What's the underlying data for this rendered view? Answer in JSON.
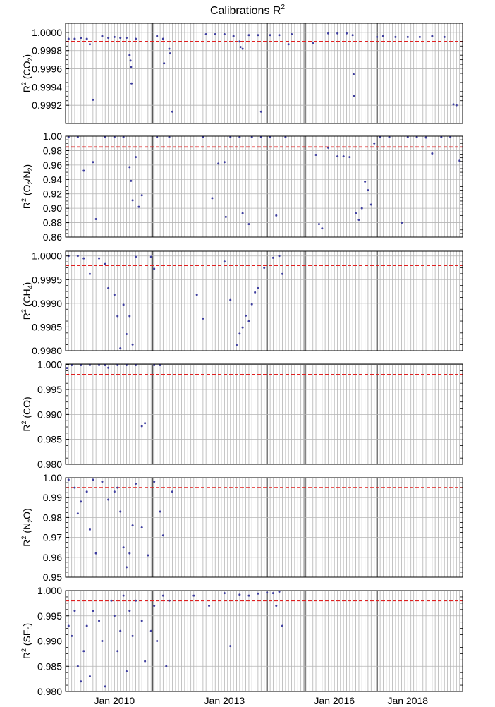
{
  "figure": {
    "title": "Calibrations R",
    "title_sup": "2"
  },
  "colors": {
    "points": "#3d3d9e",
    "threshold": "#e02020",
    "grid_minor": "#b4b4b4",
    "grid_major": "#5a5a5a",
    "frame": "#000000"
  },
  "x_axis": {
    "type": "date",
    "min": "2008-09-01",
    "max": "2019-07-01",
    "tick_labels": [
      {
        "date": "2010-01-01",
        "label": "Jan 2010"
      },
      {
        "date": "2013-01-01",
        "label": "Jan 2013"
      },
      {
        "date": "2016-01-01",
        "label": "Jan 2016"
      },
      {
        "date": "2018-01-01",
        "label": "Jan 2018"
      }
    ],
    "grid": "monthly gridlines",
    "emphasized_gridline_dates": [
      "2011-01-15",
      "2014-03-01",
      "2015-03-15",
      "2017-03-01"
    ]
  },
  "chart_data": [
    {
      "type": "scatter",
      "ylabel_main": "R",
      "ylabel_sup": "2",
      "ylabel_rest": " (CO",
      "ylabel_sub": "2",
      "ylabel_end": ")",
      "ylim": [
        0.999,
        1.0001
      ],
      "yticks": [
        "1.0000",
        "0.9998",
        "0.9996",
        "0.9994",
        "0.9992"
      ],
      "ytick_values": [
        1.0,
        0.9998,
        0.9996,
        0.9994,
        0.9992
      ],
      "threshold": 0.9999,
      "points": [
        [
          "2008-10-01",
          0.99993
        ],
        [
          "2008-12-01",
          0.99993
        ],
        [
          "2009-02-01",
          0.99994
        ],
        [
          "2009-04-01",
          0.99993
        ],
        [
          "2009-05-01",
          0.99987
        ],
        [
          "2009-06-01",
          0.99926
        ],
        [
          "2009-09-01",
          0.99996
        ],
        [
          "2009-11-01",
          0.99994
        ],
        [
          "2010-01-01",
          0.99995
        ],
        [
          "2010-03-01",
          0.99994
        ],
        [
          "2010-05-01",
          0.99994
        ],
        [
          "2010-06-01",
          0.99975
        ],
        [
          "2010-06-10",
          0.99969
        ],
        [
          "2010-06-15",
          0.99962
        ],
        [
          "2010-06-20",
          0.99944
        ],
        [
          "2010-08-01",
          0.99993
        ],
        [
          "2011-03-01",
          0.99996
        ],
        [
          "2011-05-01",
          0.99993
        ],
        [
          "2011-05-10",
          0.99966
        ],
        [
          "2011-07-01",
          0.99982
        ],
        [
          "2011-07-10",
          0.99977
        ],
        [
          "2011-08-01",
          0.99913
        ],
        [
          "2012-07-01",
          0.99998
        ],
        [
          "2012-10-01",
          0.99998
        ],
        [
          "2013-01-01",
          0.99998
        ],
        [
          "2013-04-01",
          0.99996
        ],
        [
          "2013-06-01",
          0.9999
        ],
        [
          "2013-06-10",
          0.99984
        ],
        [
          "2013-07-01",
          0.99982
        ],
        [
          "2013-09-01",
          0.99997
        ],
        [
          "2013-12-01",
          0.99997
        ],
        [
          "2014-01-01",
          0.99913
        ],
        [
          "2014-04-01",
          0.99997
        ],
        [
          "2014-07-01",
          0.99997
        ],
        [
          "2014-10-01",
          0.99987
        ],
        [
          "2014-11-01",
          0.99998
        ],
        [
          "2015-06-01",
          0.99988
        ],
        [
          "2015-11-01",
          0.99999
        ],
        [
          "2016-02-01",
          0.99999
        ],
        [
          "2016-05-01",
          0.99999
        ],
        [
          "2016-07-01",
          0.99997
        ],
        [
          "2016-07-10",
          0.99954
        ],
        [
          "2016-07-15",
          0.9993
        ],
        [
          "2017-03-01",
          0.99995
        ],
        [
          "2017-05-01",
          0.99996
        ],
        [
          "2017-09-01",
          0.99995
        ],
        [
          "2018-01-01",
          0.99995
        ],
        [
          "2018-05-01",
          0.99995
        ],
        [
          "2018-09-01",
          0.99996
        ],
        [
          "2019-01-01",
          0.99995
        ],
        [
          "2019-04-01",
          0.99921
        ],
        [
          "2019-05-01",
          0.9992
        ]
      ]
    },
    {
      "type": "scatter",
      "ylabel_main": "R",
      "ylabel_sup": "2",
      "ylabel_rest": " (O",
      "ylabel_sub": "2",
      "ylabel_end": "/N",
      "ylabel_sub2": "2",
      "ylabel_end2": ")",
      "ylim": [
        0.86,
        1.0
      ],
      "yticks": [
        "1.00",
        "0.98",
        "0.96",
        "0.94",
        "0.92",
        "0.90",
        "0.88",
        "0.86"
      ],
      "ytick_values": [
        1.0,
        0.98,
        0.96,
        0.94,
        0.92,
        0.9,
        0.88,
        0.86
      ],
      "threshold": 0.985,
      "points": [
        [
          "2008-10-01",
          0.999
        ],
        [
          "2009-01-01",
          0.999
        ],
        [
          "2009-03-01",
          0.952
        ],
        [
          "2009-06-01",
          0.964
        ],
        [
          "2009-07-01",
          0.885
        ],
        [
          "2009-10-01",
          0.999
        ],
        [
          "2010-01-01",
          0.999
        ],
        [
          "2010-04-01",
          0.999
        ],
        [
          "2010-06-01",
          0.957
        ],
        [
          "2010-06-15",
          0.938
        ],
        [
          "2010-07-01",
          0.911
        ],
        [
          "2010-08-01",
          0.971
        ],
        [
          "2010-09-01",
          0.902
        ],
        [
          "2010-10-01",
          0.918
        ],
        [
          "2011-03-01",
          0.999
        ],
        [
          "2011-07-01",
          0.999
        ],
        [
          "2012-06-01",
          0.999
        ],
        [
          "2012-09-01",
          0.914
        ],
        [
          "2012-11-01",
          0.962
        ],
        [
          "2013-01-01",
          0.964
        ],
        [
          "2013-01-15",
          0.888
        ],
        [
          "2013-03-01",
          0.999
        ],
        [
          "2013-06-01",
          0.999
        ],
        [
          "2013-07-01",
          0.893
        ],
        [
          "2013-09-01",
          0.878
        ],
        [
          "2013-10-01",
          0.999
        ],
        [
          "2014-01-01",
          0.999
        ],
        [
          "2014-04-01",
          0.999
        ],
        [
          "2014-06-01",
          0.89
        ],
        [
          "2014-09-01",
          0.999
        ],
        [
          "2015-07-01",
          0.974
        ],
        [
          "2015-08-01",
          0.878
        ],
        [
          "2015-09-01",
          0.872
        ],
        [
          "2015-11-01",
          0.984
        ],
        [
          "2016-02-01",
          0.972
        ],
        [
          "2016-04-01",
          0.972
        ],
        [
          "2016-06-01",
          0.971
        ],
        [
          "2016-08-01",
          0.893
        ],
        [
          "2016-09-01",
          0.884
        ],
        [
          "2016-10-01",
          0.9
        ],
        [
          "2016-11-01",
          0.937
        ],
        [
          "2016-12-01",
          0.925
        ],
        [
          "2017-01-01",
          0.905
        ],
        [
          "2017-02-01",
          0.99
        ],
        [
          "2017-04-01",
          0.999
        ],
        [
          "2017-07-01",
          0.999
        ],
        [
          "2017-11-01",
          0.88
        ],
        [
          "2018-01-01",
          0.999
        ],
        [
          "2018-04-01",
          0.999
        ],
        [
          "2018-07-01",
          0.998
        ],
        [
          "2018-09-01",
          0.976
        ],
        [
          "2018-12-01",
          0.999
        ],
        [
          "2019-03-01",
          0.999
        ],
        [
          "2019-06-01",
          0.966
        ]
      ]
    },
    {
      "type": "scatter",
      "ylabel_main": "R",
      "ylabel_sup": "2",
      "ylabel_rest": " (CH",
      "ylabel_sub": "4",
      "ylabel_end": ")",
      "ylim": [
        0.998,
        1.0001
      ],
      "yticks": [
        "1.0000",
        "0.9995",
        "0.9990",
        "0.9985",
        "0.9980"
      ],
      "ytick_values": [
        1.0,
        0.9995,
        0.999,
        0.9985,
        0.998
      ],
      "threshold": 0.9998,
      "points": [
        [
          "2008-10-01",
          1.0
        ],
        [
          "2009-01-01",
          1.0
        ],
        [
          "2009-03-01",
          0.99995
        ],
        [
          "2009-05-01",
          0.99962
        ],
        [
          "2009-08-01",
          0.99995
        ],
        [
          "2009-10-01",
          0.99983
        ],
        [
          "2009-11-01",
          0.99932
        ],
        [
          "2010-01-01",
          0.99918
        ],
        [
          "2010-02-01",
          0.99873
        ],
        [
          "2010-03-01",
          0.99805
        ],
        [
          "2010-04-01",
          0.99897
        ],
        [
          "2010-05-01",
          0.99835
        ],
        [
          "2010-06-01",
          0.99873
        ],
        [
          "2010-07-01",
          0.99813
        ],
        [
          "2010-08-01",
          0.99998
        ],
        [
          "2011-01-01",
          0.99998
        ],
        [
          "2011-02-01",
          0.99973
        ],
        [
          "2012-04-01",
          0.99918
        ],
        [
          "2012-06-01",
          0.99868
        ],
        [
          "2013-01-01",
          0.99988
        ],
        [
          "2013-03-01",
          0.99907
        ],
        [
          "2013-05-01",
          0.99812
        ],
        [
          "2013-06-01",
          0.99836
        ],
        [
          "2013-07-01",
          0.99849
        ],
        [
          "2013-08-01",
          0.99874
        ],
        [
          "2013-09-01",
          0.99862
        ],
        [
          "2013-10-01",
          0.99898
        ],
        [
          "2013-11-01",
          0.99923
        ],
        [
          "2013-12-01",
          0.99932
        ],
        [
          "2014-02-01",
          0.99975
        ],
        [
          "2014-05-01",
          0.99996
        ],
        [
          "2014-07-01",
          1.0
        ],
        [
          "2014-08-01",
          0.99962
        ]
      ]
    },
    {
      "type": "scatter",
      "ylabel_main": "R",
      "ylabel_sup": "2",
      "ylabel_rest": " (CO)",
      "ylim": [
        0.98,
        1.0001
      ],
      "yticks": [
        "1.000",
        "0.995",
        "0.990",
        "0.985",
        "0.980"
      ],
      "ytick_values": [
        1.0,
        0.995,
        0.99,
        0.985,
        0.98
      ],
      "threshold": 0.998,
      "points": [
        [
          "2008-09-15",
          0.9993
        ],
        [
          "2008-11-01",
          0.99995
        ],
        [
          "2009-02-01",
          0.99995
        ],
        [
          "2009-05-01",
          0.99995
        ],
        [
          "2009-08-01",
          0.99995
        ],
        [
          "2009-10-01",
          0.9999
        ],
        [
          "2009-11-01",
          0.99935
        ],
        [
          "2010-02-01",
          0.99995
        ],
        [
          "2010-05-01",
          0.99995
        ],
        [
          "2010-08-01",
          0.99995
        ],
        [
          "2010-10-01",
          0.98765
        ],
        [
          "2010-11-01",
          0.98825
        ],
        [
          "2011-02-01",
          0.99995
        ],
        [
          "2011-04-01",
          0.99995
        ]
      ]
    },
    {
      "type": "scatter",
      "ylabel_main": "R",
      "ylabel_sup": "2",
      "ylabel_rest": " (N",
      "ylabel_sub": "2",
      "ylabel_end": "O)",
      "ylim": [
        0.95,
        1.0
      ],
      "yticks": [
        "1.00",
        "0.99",
        "0.98",
        "0.97",
        "0.96",
        "0.95"
      ],
      "ytick_values": [
        1.0,
        0.99,
        0.98,
        0.97,
        0.96,
        0.95
      ],
      "threshold": 0.995,
      "points": [
        [
          "2008-10-01",
          0.999
        ],
        [
          "2008-12-01",
          0.995
        ],
        [
          "2009-01-01",
          0.982
        ],
        [
          "2009-02-01",
          0.988
        ],
        [
          "2009-04-01",
          0.993
        ],
        [
          "2009-05-01",
          0.974
        ],
        [
          "2009-06-01",
          0.999
        ],
        [
          "2009-07-01",
          0.962
        ],
        [
          "2009-09-01",
          0.998
        ],
        [
          "2009-11-01",
          0.989
        ],
        [
          "2010-01-01",
          0.993
        ],
        [
          "2010-02-01",
          0.995
        ],
        [
          "2010-03-01",
          0.983
        ],
        [
          "2010-04-01",
          0.965
        ],
        [
          "2010-05-01",
          0.955
        ],
        [
          "2010-06-01",
          0.962
        ],
        [
          "2010-07-01",
          0.976
        ],
        [
          "2010-08-01",
          0.997
        ],
        [
          "2010-10-01",
          0.975
        ],
        [
          "2010-12-01",
          0.961
        ],
        [
          "2011-02-01",
          0.998
        ],
        [
          "2011-04-01",
          0.983
        ],
        [
          "2011-05-01",
          0.971
        ],
        [
          "2011-08-01",
          0.993
        ]
      ]
    },
    {
      "type": "scatter",
      "ylabel_main": "R",
      "ylabel_sup": "2",
      "ylabel_rest": " (SF",
      "ylabel_sub": "6",
      "ylabel_end": ")",
      "ylim": [
        0.98,
        1.0
      ],
      "yticks": [
        "1.000",
        "0.995",
        "0.990",
        "0.985",
        "0.980"
      ],
      "ytick_values": [
        1.0,
        0.995,
        0.99,
        0.985,
        0.98
      ],
      "threshold": 0.998,
      "points": [
        [
          "2008-10-01",
          0.993
        ],
        [
          "2008-11-01",
          0.991
        ],
        [
          "2008-12-01",
          0.996
        ],
        [
          "2009-01-01",
          0.985
        ],
        [
          "2009-02-01",
          0.982
        ],
        [
          "2009-03-01",
          0.988
        ],
        [
          "2009-04-01",
          0.993
        ],
        [
          "2009-05-01",
          0.983
        ],
        [
          "2009-06-01",
          0.996
        ],
        [
          "2009-08-01",
          0.994
        ],
        [
          "2009-09-01",
          0.99
        ],
        [
          "2009-10-01",
          0.981
        ],
        [
          "2009-12-01",
          0.998
        ],
        [
          "2010-01-01",
          0.995
        ],
        [
          "2010-02-01",
          0.988
        ],
        [
          "2010-03-01",
          0.992
        ],
        [
          "2010-04-01",
          0.999
        ],
        [
          "2010-05-01",
          0.984
        ],
        [
          "2010-06-01",
          0.996
        ],
        [
          "2010-07-01",
          0.991
        ],
        [
          "2010-08-01",
          0.998
        ],
        [
          "2010-10-01",
          0.994
        ],
        [
          "2010-11-01",
          0.986
        ],
        [
          "2011-01-01",
          0.992
        ],
        [
          "2011-02-01",
          0.997
        ],
        [
          "2011-03-01",
          0.99
        ],
        [
          "2011-05-01",
          0.999
        ],
        [
          "2011-06-01",
          0.985
        ],
        [
          "2011-07-01",
          0.998
        ],
        [
          "2012-03-01",
          0.999
        ],
        [
          "2012-08-01",
          0.997
        ],
        [
          "2013-01-01",
          0.9995
        ],
        [
          "2013-03-01",
          0.989
        ],
        [
          "2013-06-01",
          0.9992
        ],
        [
          "2013-09-01",
          0.999
        ],
        [
          "2013-12-01",
          0.9994
        ],
        [
          "2014-03-01",
          0.9996
        ],
        [
          "2014-05-01",
          0.9995
        ],
        [
          "2014-06-01",
          0.997
        ],
        [
          "2014-07-01",
          0.9998
        ],
        [
          "2014-08-01",
          0.993
        ]
      ]
    }
  ]
}
